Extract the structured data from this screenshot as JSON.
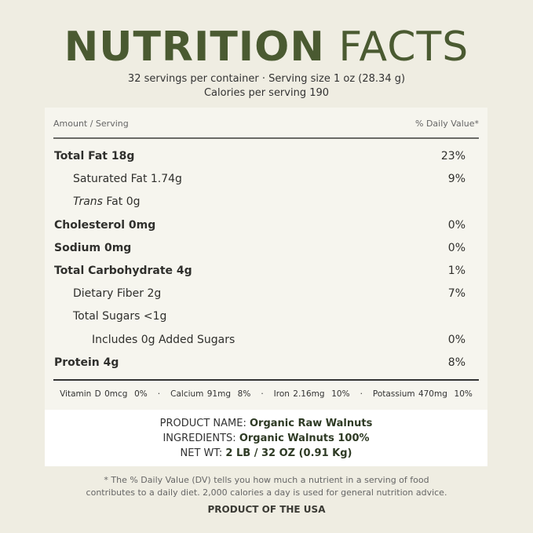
{
  "title": {
    "bold": "NUTRITION",
    "light": "FACTS"
  },
  "servings": "32 servings per container · Serving size 1 oz (28.34 g)",
  "calories": "Calories per serving 190",
  "header": {
    "amount": "Amount / Serving",
    "dv": "% Daily Value*"
  },
  "rows": [
    {
      "label": "Total Fat 18g",
      "dv": "23%",
      "bold": true,
      "indent": 0
    },
    {
      "label": "Saturated Fat 1.74g",
      "dv": "9%",
      "indent": 1
    },
    {
      "label_italic": "Trans",
      "label": " Fat 0g",
      "dv": "",
      "indent": 1
    },
    {
      "label": "Cholesterol 0mg",
      "dv": "0%",
      "bold": true,
      "indent": 0
    },
    {
      "label": "Sodium 0mg",
      "dv": "0%",
      "bold": true,
      "indent": 0
    },
    {
      "label": "Total Carbohydrate 4g",
      "dv": "1%",
      "bold": true,
      "indent": 0
    },
    {
      "label": "Dietary Fiber 2g",
      "dv": "7%",
      "indent": 1
    },
    {
      "label": "Total Sugars <1g",
      "dv": "",
      "indent": 1
    },
    {
      "label": "Includes 0g Added Sugars",
      "dv": "0%",
      "indent": 2
    },
    {
      "label": "Protein 4g",
      "dv": "8%",
      "bold": true,
      "indent": 0
    }
  ],
  "vitamins": "Vitamin D 0mcg  0%   ·   Calcium 91mg  8%   ·   Iron 2.16mg  10%   ·   Potassium 470mg  10%",
  "product": {
    "name_label": "PRODUCT NAME: ",
    "name": "Organic Raw Walnuts",
    "ing_label": "INGREDIENTS: ",
    "ingredients": "Organic Walnuts 100%",
    "wt_label": "NET WT: ",
    "wt": "2 LB / 32 OZ (0.91 Kg)"
  },
  "footnote1": "* The % Daily Value (DV) tells you how much a nutrient in a serving of food",
  "footnote2": "contributes to a daily diet. 2,000 calories a day is used for general nutrition advice.",
  "origin": "PRODUCT OF THE USA",
  "colors": {
    "title": "#4a5a31",
    "background": "#efede2",
    "panel": "#f6f5ee"
  }
}
